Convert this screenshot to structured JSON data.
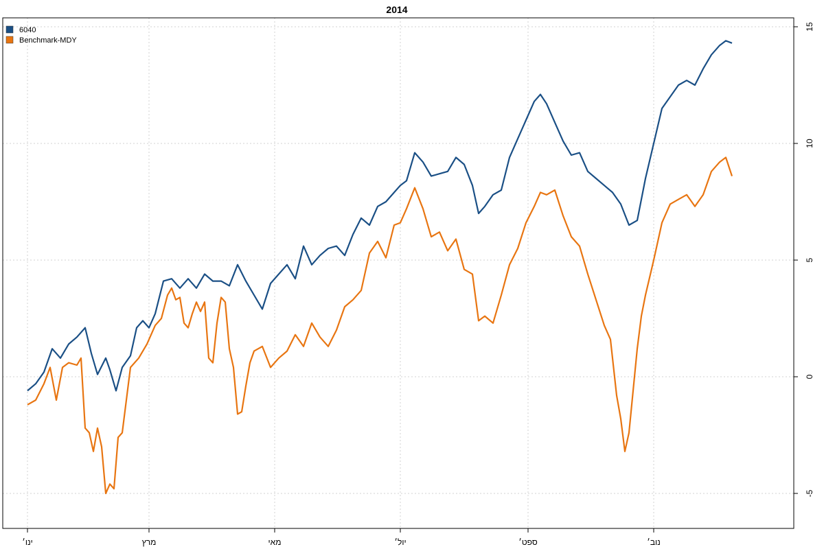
{
  "chart_data": {
    "type": "line",
    "title": "2014",
    "xlabel": "",
    "ylabel": "",
    "ylim": [
      -6.5,
      15.5
    ],
    "yticks": [
      -5,
      0,
      5,
      10,
      15
    ],
    "xlim": [
      0,
      358
    ],
    "xticks": [
      {
        "pos": 0,
        "label": "ינו׳"
      },
      {
        "pos": 59,
        "label": "מרץ"
      },
      {
        "pos": 120,
        "label": "מאי"
      },
      {
        "pos": 181,
        "label": "יול׳"
      },
      {
        "pos": 243,
        "label": "ספט׳"
      },
      {
        "pos": 304,
        "label": "נוב׳"
      }
    ],
    "grid": true,
    "legend_position": "top-left",
    "series": [
      {
        "name": "6040",
        "color": "#1a4f85",
        "points": [
          [
            0,
            -0.6
          ],
          [
            4,
            -0.3
          ],
          [
            8,
            0.2
          ],
          [
            12,
            1.2
          ],
          [
            16,
            0.8
          ],
          [
            20,
            1.4
          ],
          [
            24,
            1.7
          ],
          [
            28,
            2.1
          ],
          [
            31,
            1.0
          ],
          [
            34,
            0.1
          ],
          [
            38,
            0.8
          ],
          [
            40,
            0.3
          ],
          [
            43,
            -0.6
          ],
          [
            46,
            0.4
          ],
          [
            50,
            0.9
          ],
          [
            53,
            2.1
          ],
          [
            56,
            2.4
          ],
          [
            59,
            2.1
          ],
          [
            62,
            2.7
          ],
          [
            66,
            4.1
          ],
          [
            70,
            4.2
          ],
          [
            74,
            3.8
          ],
          [
            78,
            4.2
          ],
          [
            82,
            3.8
          ],
          [
            86,
            4.4
          ],
          [
            90,
            4.1
          ],
          [
            94,
            4.1
          ],
          [
            98,
            3.9
          ],
          [
            102,
            4.8
          ],
          [
            106,
            4.1
          ],
          [
            110,
            3.5
          ],
          [
            114,
            2.9
          ],
          [
            118,
            4.0
          ],
          [
            122,
            4.4
          ],
          [
            126,
            4.8
          ],
          [
            130,
            4.2
          ],
          [
            134,
            5.6
          ],
          [
            138,
            4.8
          ],
          [
            142,
            5.2
          ],
          [
            146,
            5.5
          ],
          [
            150,
            5.6
          ],
          [
            154,
            5.2
          ],
          [
            158,
            6.1
          ],
          [
            162,
            6.8
          ],
          [
            166,
            6.5
          ],
          [
            170,
            7.3
          ],
          [
            174,
            7.5
          ],
          [
            178,
            7.9
          ],
          [
            181,
            8.2
          ],
          [
            184,
            8.4
          ],
          [
            188,
            9.6
          ],
          [
            192,
            9.2
          ],
          [
            196,
            8.6
          ],
          [
            200,
            8.7
          ],
          [
            204,
            8.8
          ],
          [
            208,
            9.4
          ],
          [
            212,
            9.1
          ],
          [
            216,
            8.2
          ],
          [
            219,
            7.0
          ],
          [
            222,
            7.3
          ],
          [
            226,
            7.8
          ],
          [
            230,
            8.0
          ],
          [
            234,
            9.4
          ],
          [
            238,
            10.2
          ],
          [
            242,
            11.0
          ],
          [
            246,
            11.8
          ],
          [
            249,
            12.1
          ],
          [
            252,
            11.7
          ],
          [
            256,
            10.9
          ],
          [
            260,
            10.1
          ],
          [
            264,
            9.5
          ],
          [
            268,
            9.6
          ],
          [
            272,
            8.8
          ],
          [
            276,
            8.5
          ],
          [
            280,
            8.2
          ],
          [
            284,
            7.9
          ],
          [
            288,
            7.4
          ],
          [
            292,
            6.5
          ],
          [
            296,
            6.7
          ],
          [
            300,
            8.5
          ],
          [
            304,
            10.0
          ],
          [
            308,
            11.5
          ],
          [
            312,
            12.0
          ],
          [
            316,
            12.5
          ],
          [
            320,
            12.7
          ],
          [
            324,
            12.5
          ],
          [
            328,
            13.2
          ],
          [
            332,
            13.8
          ],
          [
            336,
            14.2
          ],
          [
            339,
            14.4
          ],
          [
            342,
            14.3
          ]
        ]
      },
      {
        "name": "Benchmark-MDY",
        "color": "#e87511",
        "points": [
          [
            0,
            -1.2
          ],
          [
            4,
            -1.0
          ],
          [
            8,
            -0.3
          ],
          [
            11,
            0.4
          ],
          [
            14,
            -1.0
          ],
          [
            17,
            0.4
          ],
          [
            20,
            0.6
          ],
          [
            24,
            0.5
          ],
          [
            26,
            0.8
          ],
          [
            28,
            -2.2
          ],
          [
            30,
            -2.4
          ],
          [
            32,
            -3.2
          ],
          [
            34,
            -2.2
          ],
          [
            36,
            -3.0
          ],
          [
            38,
            -5.0
          ],
          [
            40,
            -4.6
          ],
          [
            42,
            -4.8
          ],
          [
            44,
            -2.6
          ],
          [
            46,
            -2.4
          ],
          [
            50,
            0.4
          ],
          [
            54,
            0.8
          ],
          [
            58,
            1.4
          ],
          [
            62,
            2.2
          ],
          [
            65,
            2.5
          ],
          [
            68,
            3.5
          ],
          [
            70,
            3.8
          ],
          [
            72,
            3.3
          ],
          [
            74,
            3.4
          ],
          [
            76,
            2.3
          ],
          [
            78,
            2.1
          ],
          [
            80,
            2.7
          ],
          [
            82,
            3.2
          ],
          [
            84,
            2.8
          ],
          [
            86,
            3.2
          ],
          [
            88,
            0.8
          ],
          [
            90,
            0.6
          ],
          [
            92,
            2.3
          ],
          [
            94,
            3.4
          ],
          [
            96,
            3.2
          ],
          [
            98,
            1.2
          ],
          [
            100,
            0.4
          ],
          [
            102,
            -1.6
          ],
          [
            104,
            -1.5
          ],
          [
            106,
            -0.4
          ],
          [
            108,
            0.6
          ],
          [
            110,
            1.1
          ],
          [
            114,
            1.3
          ],
          [
            118,
            0.4
          ],
          [
            122,
            0.8
          ],
          [
            126,
            1.1
          ],
          [
            130,
            1.8
          ],
          [
            134,
            1.3
          ],
          [
            138,
            2.3
          ],
          [
            142,
            1.7
          ],
          [
            146,
            1.3
          ],
          [
            150,
            2.0
          ],
          [
            154,
            3.0
          ],
          [
            158,
            3.3
          ],
          [
            162,
            3.7
          ],
          [
            166,
            5.3
          ],
          [
            170,
            5.8
          ],
          [
            174,
            5.1
          ],
          [
            178,
            6.5
          ],
          [
            181,
            6.6
          ],
          [
            184,
            7.2
          ],
          [
            188,
            8.1
          ],
          [
            192,
            7.2
          ],
          [
            196,
            6.0
          ],
          [
            200,
            6.2
          ],
          [
            204,
            5.4
          ],
          [
            208,
            5.9
          ],
          [
            212,
            4.6
          ],
          [
            216,
            4.4
          ],
          [
            219,
            2.4
          ],
          [
            222,
            2.6
          ],
          [
            226,
            2.3
          ],
          [
            230,
            3.5
          ],
          [
            234,
            4.8
          ],
          [
            238,
            5.5
          ],
          [
            242,
            6.6
          ],
          [
            246,
            7.3
          ],
          [
            249,
            7.9
          ],
          [
            252,
            7.8
          ],
          [
            256,
            8.0
          ],
          [
            260,
            6.9
          ],
          [
            264,
            6.0
          ],
          [
            268,
            5.6
          ],
          [
            272,
            4.4
          ],
          [
            276,
            3.3
          ],
          [
            280,
            2.2
          ],
          [
            283,
            1.6
          ],
          [
            286,
            -0.8
          ],
          [
            288,
            -1.8
          ],
          [
            290,
            -3.2
          ],
          [
            292,
            -2.4
          ],
          [
            294,
            -0.6
          ],
          [
            296,
            1.2
          ],
          [
            298,
            2.6
          ],
          [
            300,
            3.5
          ],
          [
            304,
            5.0
          ],
          [
            308,
            6.6
          ],
          [
            312,
            7.4
          ],
          [
            316,
            7.6
          ],
          [
            320,
            7.8
          ],
          [
            324,
            7.3
          ],
          [
            328,
            7.8
          ],
          [
            332,
            8.8
          ],
          [
            336,
            9.2
          ],
          [
            339,
            9.4
          ],
          [
            342,
            8.6
          ]
        ]
      }
    ]
  }
}
